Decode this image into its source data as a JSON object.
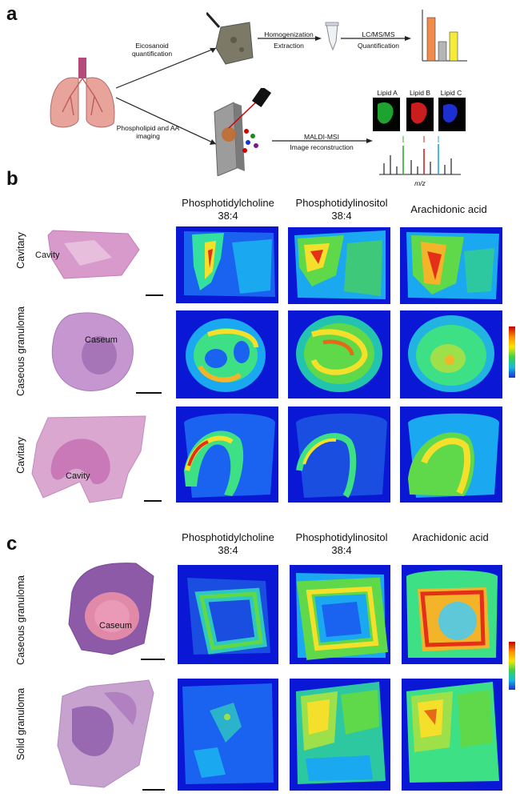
{
  "panel_a": {
    "letter": "a",
    "eicosanoid_label": "Eicosanoid quantification",
    "phospholipid_label": "Phospholipid and AA imaging",
    "homogenization_label": "Homogenization",
    "extraction_label": "Extraction",
    "lcms_label": "LC/MS/MS",
    "quantification_label": "Quantification",
    "maldi_label": "MALDI-MSI",
    "reconstruction_label": "Image reconstruction",
    "lipid_labels": [
      "Lipid A",
      "Lipid B",
      "Lipid C"
    ],
    "mz_label": "m/z",
    "bar_colors": [
      "#f28a4a",
      "#b5b5b5",
      "#f5ec3a"
    ]
  },
  "panel_b": {
    "letter": "b",
    "columns": [
      "Phosphotidylcholine",
      "Phosphotidylinositol",
      "Arachidonic acid"
    ],
    "column_suffix": [
      "38:4",
      "38:4",
      ""
    ],
    "rows": [
      "Cavitary",
      "Caseous granuloma",
      "Cavitary"
    ],
    "tissue_labels": [
      "Cavity",
      "Caseum",
      "Cavity"
    ]
  },
  "panel_c": {
    "letter": "c",
    "columns": [
      "Phosphotidylcholine",
      "Phosphotidylinositol",
      "Arachidonic acid"
    ],
    "column_suffix": [
      "38:4",
      "38:4",
      ""
    ],
    "rows": [
      "Caseous granuloma",
      "Solid granuloma"
    ],
    "tissue_labels": [
      "Caseum",
      ""
    ]
  },
  "colors": {
    "heatmap_background": "#0a18d6",
    "tissue_pink": "#d98bc6",
    "tissue_purple": "#8a4fa8"
  }
}
